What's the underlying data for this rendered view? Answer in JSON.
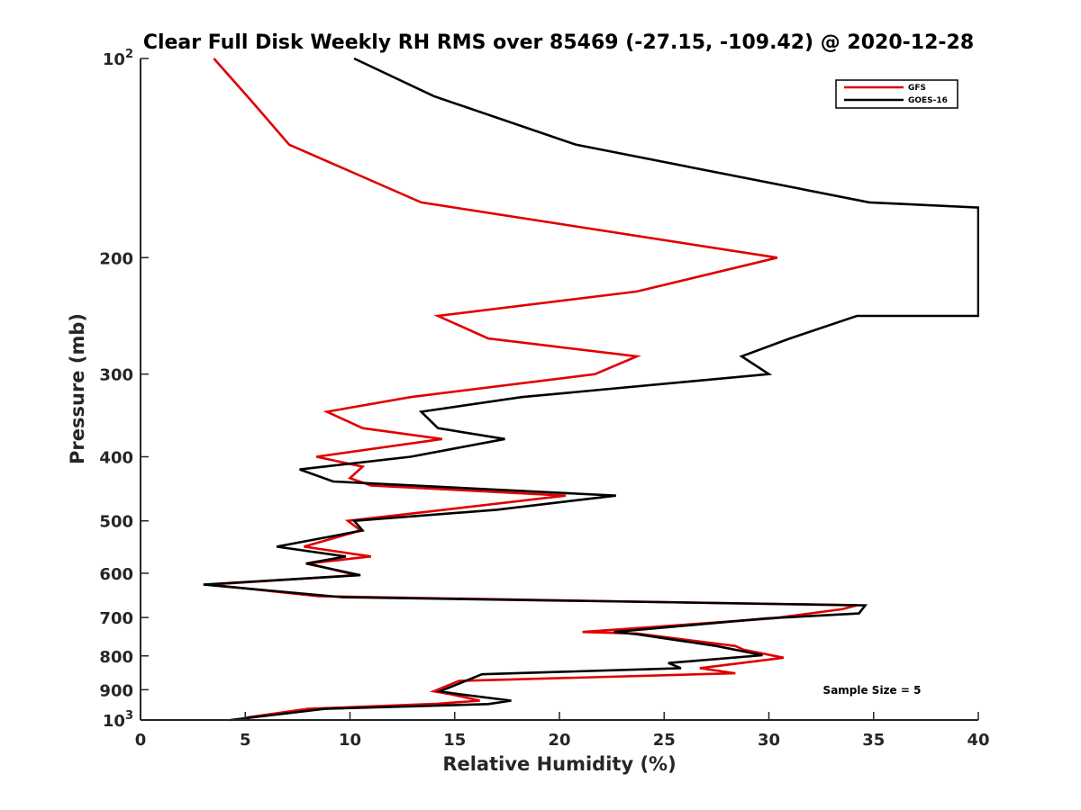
{
  "chart_data": {
    "type": "line",
    "title": "Clear Full Disk Weekly RH RMS over 85469 (-27.15, -109.42) @ 2020-12-28",
    "xlabel": "Relative Humidity (%)",
    "ylabel": "Pressure (mb)",
    "xlim": [
      0,
      40
    ],
    "ylim": [
      100,
      1000
    ],
    "y_scale": "log",
    "y_reversed": true,
    "grid": false,
    "legend_position": "top-right",
    "x_ticks": [
      "0",
      "5",
      "10",
      "15",
      "20",
      "25",
      "30",
      "35",
      "40"
    ],
    "y_ticks": [
      {
        "value": 100,
        "base": "10",
        "exp": "2"
      },
      {
        "value": 200,
        "label": "200"
      },
      {
        "value": 300,
        "label": "300"
      },
      {
        "value": 400,
        "label": "400"
      },
      {
        "value": 500,
        "label": "500"
      },
      {
        "value": 600,
        "label": "600"
      },
      {
        "value": 700,
        "label": "700"
      },
      {
        "value": 800,
        "label": "800"
      },
      {
        "value": 900,
        "label": "900"
      },
      {
        "value": 1000,
        "base": "10",
        "exp": "3"
      }
    ],
    "series": [
      {
        "name": "GFS",
        "color": "#e00000",
        "points": [
          [
            3.5,
            100
          ],
          [
            5.2,
            115
          ],
          [
            7.1,
            135
          ],
          [
            13.4,
            165
          ],
          [
            30.4,
            200
          ],
          [
            23.7,
            225
          ],
          [
            14.2,
            245
          ],
          [
            16.6,
            265
          ],
          [
            23.7,
            282
          ],
          [
            21.7,
            300
          ],
          [
            12.9,
            325
          ],
          [
            8.9,
            342
          ],
          [
            10.6,
            362
          ],
          [
            14.4,
            376
          ],
          [
            8.4,
            400
          ],
          [
            10.6,
            414
          ],
          [
            10.0,
            431
          ],
          [
            11.0,
            442
          ],
          [
            20.3,
            458
          ],
          [
            14.5,
            481
          ],
          [
            9.9,
            500
          ],
          [
            10.5,
            517
          ],
          [
            7.8,
            547
          ],
          [
            11.0,
            566
          ],
          [
            8.0,
            580
          ],
          [
            10.3,
            604
          ],
          [
            3.3,
            624
          ],
          [
            8.5,
            650
          ],
          [
            34.2,
            671
          ],
          [
            33.5,
            680
          ],
          [
            30.2,
            702
          ],
          [
            21.1,
            736
          ],
          [
            23.7,
            740
          ],
          [
            28.4,
            773
          ],
          [
            28.8,
            783
          ],
          [
            30.7,
            805
          ],
          [
            26.7,
            835
          ],
          [
            28.4,
            850
          ],
          [
            15.2,
            873
          ],
          [
            14.0,
            905
          ],
          [
            14.8,
            914
          ],
          [
            16.2,
            935
          ],
          [
            14.2,
            945
          ],
          [
            8.0,
            962
          ],
          [
            5.2,
            990
          ],
          [
            4.6,
            1000
          ]
        ]
      },
      {
        "name": "GOES-16",
        "color": "#000000",
        "points": [
          [
            10.2,
            100
          ],
          [
            14.0,
            114
          ],
          [
            20.8,
            135
          ],
          [
            34.8,
            165
          ],
          [
            40.0,
            168
          ],
          [
            40.0,
            245
          ],
          [
            34.2,
            245
          ],
          [
            31.0,
            265
          ],
          [
            28.7,
            282
          ],
          [
            30.0,
            300
          ],
          [
            18.2,
            325
          ],
          [
            13.4,
            342
          ],
          [
            14.2,
            362
          ],
          [
            17.4,
            376
          ],
          [
            12.9,
            400
          ],
          [
            7.6,
            418
          ],
          [
            9.2,
            436
          ],
          [
            22.7,
            458
          ],
          [
            17.0,
            481
          ],
          [
            10.2,
            500
          ],
          [
            10.6,
            517
          ],
          [
            6.5,
            547
          ],
          [
            9.8,
            566
          ],
          [
            7.9,
            580
          ],
          [
            10.5,
            604
          ],
          [
            3.0,
            624
          ],
          [
            9.6,
            652
          ],
          [
            34.6,
            671
          ],
          [
            34.3,
            690
          ],
          [
            29.9,
            702
          ],
          [
            22.6,
            736
          ],
          [
            23.7,
            742
          ],
          [
            27.5,
            773
          ],
          [
            29.7,
            798
          ],
          [
            25.2,
            820
          ],
          [
            25.8,
            835
          ],
          [
            16.3,
            853
          ],
          [
            14.3,
            905
          ],
          [
            15.0,
            912
          ],
          [
            17.7,
            935
          ],
          [
            16.6,
            946
          ],
          [
            8.8,
            962
          ],
          [
            4.3,
            1000
          ]
        ]
      }
    ],
    "annotations": [
      "Sample Size = 5"
    ]
  }
}
